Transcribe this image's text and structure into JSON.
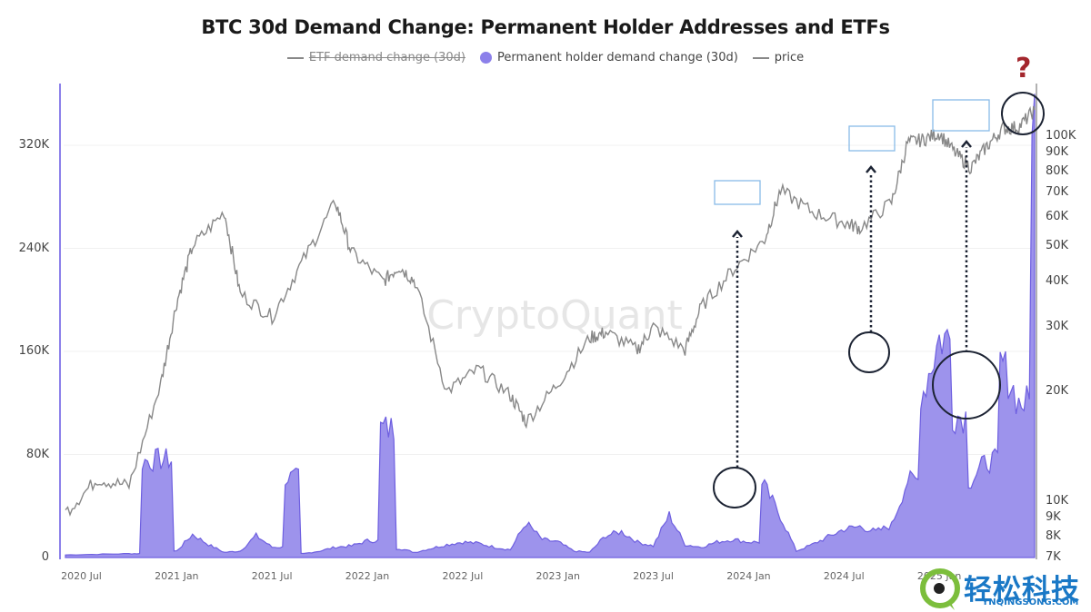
{
  "chart_data": {
    "type": "area",
    "title": "BTC 30d Demand Change: Permanent Holder Addresses and ETFs",
    "legend": [
      {
        "label": "ETF demand change (30d)",
        "style": "line",
        "hidden": true,
        "color": "#888888"
      },
      {
        "label": "Permanent holder demand change (30d)",
        "style": "area",
        "hidden": false,
        "color": "#8c80ea"
      },
      {
        "label": "price",
        "style": "line",
        "hidden": false,
        "color": "#888888"
      }
    ],
    "legend_position": "top",
    "grid": true,
    "x_ticks": [
      "2020 Jul",
      "2021 Jan",
      "2021 Jul",
      "2022 Jan",
      "2022 Jul",
      "2023 Jan",
      "2023 Jul",
      "2024 Jan",
      "2024 Jul",
      "2025 Jan"
    ],
    "y_left": {
      "label": "Permanent holder demand change (30d)",
      "ticks": [
        "0",
        "80K",
        "160K",
        "240K",
        "320K"
      ],
      "range": [
        0,
        360000
      ]
    },
    "y_right": {
      "label": "price (log)",
      "ticks": [
        "7K",
        "8K",
        "9K",
        "10K",
        "20K",
        "30K",
        "40K",
        "50K",
        "60K",
        "70K",
        "80K",
        "90K",
        "100K"
      ],
      "scale": "log",
      "range": [
        7000,
        130000
      ]
    },
    "series": [
      {
        "name": "Permanent holder demand change (30d)",
        "type": "area",
        "x": [
          "2020-06",
          "2020-08",
          "2020-10",
          "2020-11",
          "2020-12",
          "2021-01",
          "2021-02",
          "2021-03",
          "2021-04",
          "2021-05",
          "2021-06",
          "2021-07",
          "2021-08",
          "2021-09",
          "2021-10",
          "2021-11",
          "2021-12",
          "2022-01",
          "2022-02",
          "2022-03",
          "2022-04",
          "2022-05",
          "2022-06",
          "2022-07",
          "2022-08",
          "2022-09",
          "2022-10",
          "2022-11",
          "2022-12",
          "2023-01",
          "2023-02",
          "2023-03",
          "2023-04",
          "2023-05",
          "2023-06",
          "2023-07",
          "2023-08",
          "2023-09",
          "2023-10",
          "2023-11",
          "2023-12",
          "2024-01",
          "2024-02",
          "2024-03",
          "2024-04",
          "2024-05",
          "2024-06",
          "2024-07",
          "2024-08",
          "2024-09",
          "2024-10",
          "2024-11",
          "2024-12",
          "2025-01",
          "2025-02",
          "2025-03",
          "2025-04",
          "2025-05",
          "2025-06",
          "2025-07"
        ],
        "values": [
          2000,
          2500,
          3000,
          75000,
          76000,
          5000,
          18000,
          10000,
          4000,
          5000,
          17000,
          8000,
          62000,
          3000,
          5000,
          8000,
          9000,
          13000,
          100000,
          7000,
          4000,
          7000,
          10000,
          12000,
          11000,
          8000,
          6000,
          27000,
          14000,
          12000,
          5000,
          4000,
          17000,
          20000,
          12000,
          9000,
          33000,
          10000,
          8000,
          12000,
          14000,
          12000,
          55000,
          32000,
          5000,
          10000,
          16000,
          22000,
          24000,
          20000,
          25000,
          60000,
          130000,
          170000,
          110000,
          60000,
          75000,
          150000,
          120000,
          360000
        ]
      },
      {
        "name": "price",
        "type": "line",
        "x": [
          "2020-06",
          "2020-08",
          "2020-10",
          "2020-12",
          "2021-01",
          "2021-02",
          "2021-04",
          "2021-05",
          "2021-07",
          "2021-09",
          "2021-11",
          "2021-12",
          "2022-02",
          "2022-03",
          "2022-04",
          "2022-06",
          "2022-08",
          "2022-10",
          "2022-11",
          "2023-01",
          "2023-03",
          "2023-04",
          "2023-06",
          "2023-07",
          "2023-09",
          "2023-10",
          "2023-12",
          "2024-02",
          "2024-03",
          "2024-05",
          "2024-07",
          "2024-08",
          "2024-10",
          "2024-11",
          "2024-12",
          "2025-01",
          "2025-02",
          "2025-03",
          "2025-04",
          "2025-05",
          "2025-06",
          "2025-07"
        ],
        "values": [
          9300,
          11500,
          11000,
          21000,
          35000,
          50000,
          62000,
          37000,
          32000,
          46000,
          66000,
          48000,
          40000,
          44000,
          40000,
          20000,
          23000,
          19500,
          16500,
          21000,
          28000,
          29000,
          26000,
          30000,
          26000,
          34000,
          43000,
          52000,
          71000,
          62000,
          58000,
          56000,
          66000,
          96000,
          98000,
          102000,
          90000,
          82000,
          94000,
          105000,
          106000,
          118000
        ]
      }
    ],
    "annotations": [
      {
        "type": "rect",
        "label": "price top 2024-03",
        "color": "#88bbe8"
      },
      {
        "type": "rect",
        "label": "price top 2024-12",
        "color": "#88bbe8"
      },
      {
        "type": "rect",
        "label": "price top 2025-01..2025-06",
        "color": "#88bbe8"
      },
      {
        "type": "circle",
        "label": "demand peak 2024-03"
      },
      {
        "type": "circle",
        "label": "demand peak 2024-12"
      },
      {
        "type": "circle",
        "label": "demand peaks 2025-04..06"
      },
      {
        "type": "circle",
        "label": "current price 2025-07"
      },
      {
        "type": "arrow",
        "style": "dotted",
        "count": 3
      },
      {
        "type": "text",
        "label": "?",
        "color": "#a3262d"
      }
    ],
    "watermark": "CryptoQuant"
  },
  "labels": {
    "title": "BTC 30d Demand Change: Permanent Holder Addresses and ETFs",
    "legend_etf": "ETF demand change (30d)",
    "legend_holder": "Permanent holder demand change (30d)",
    "legend_price": "price",
    "question": "?",
    "watermark": "CryptoQuant",
    "site_logo_cn": "轻松科技",
    "site_logo_en": "YNQINGSONG.COM"
  },
  "colors": {
    "area_fill": "#9d93ec",
    "area_stroke": "#6e5fe0",
    "price": "#888888",
    "axis_left": "#8c80ea",
    "highlight_box": "#88bbe8",
    "annotation": "#1c2333",
    "question": "#a3262d"
  }
}
